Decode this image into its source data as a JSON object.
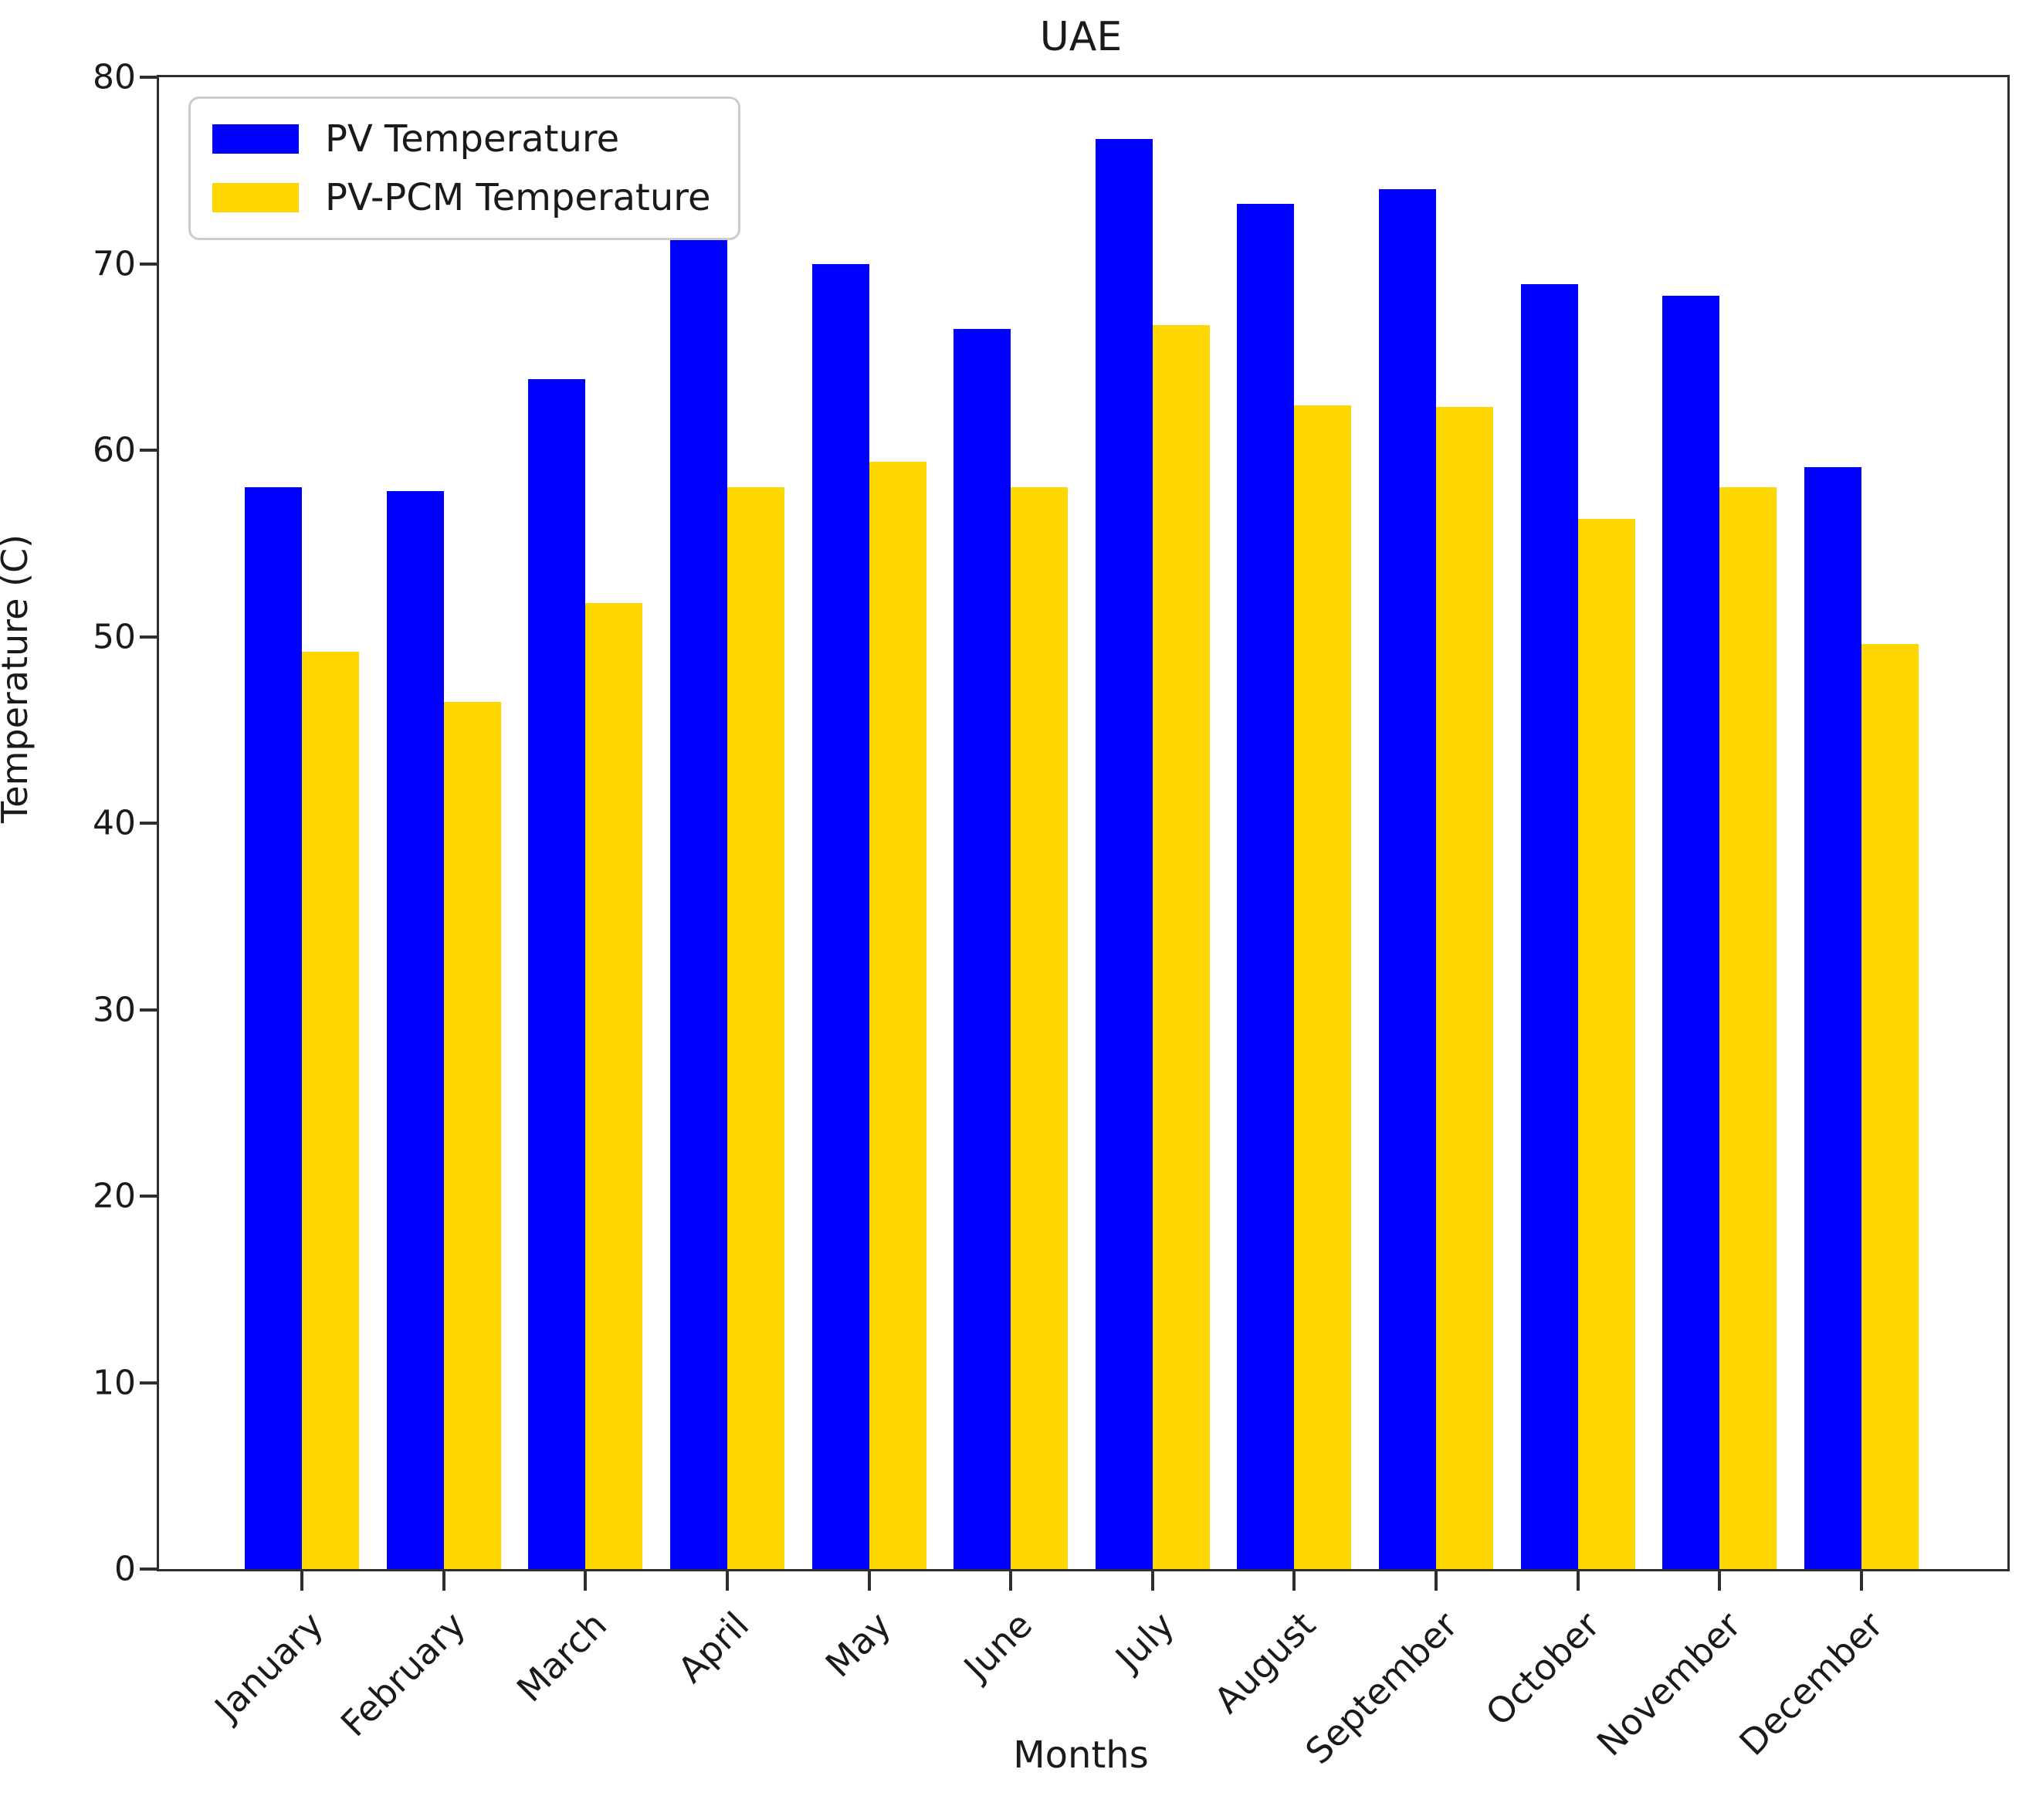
{
  "chart_data": {
    "type": "bar",
    "title": "UAE",
    "xlabel": "Months",
    "ylabel": "Temperature (C)",
    "ylim": [
      0,
      80
    ],
    "yticks": [
      0,
      10,
      20,
      30,
      40,
      50,
      60,
      70,
      80
    ],
    "grid": false,
    "legend_position": "upper-left",
    "categories": [
      "January",
      "February",
      "March",
      "April",
      "May",
      "June",
      "July",
      "August",
      "September",
      "October",
      "November",
      "December"
    ],
    "series": [
      {
        "name": "PV Temperature",
        "color": "#0000ff",
        "values": [
          58.0,
          57.8,
          63.8,
          71.3,
          70.0,
          66.5,
          76.7,
          73.2,
          74.0,
          68.9,
          68.3,
          59.1
        ]
      },
      {
        "name": "PV-PCM Temperature",
        "color": "#ffd700",
        "values": [
          49.2,
          46.5,
          51.8,
          58.0,
          59.4,
          58.0,
          66.7,
          62.4,
          62.3,
          56.3,
          58.0,
          49.6
        ]
      }
    ]
  }
}
